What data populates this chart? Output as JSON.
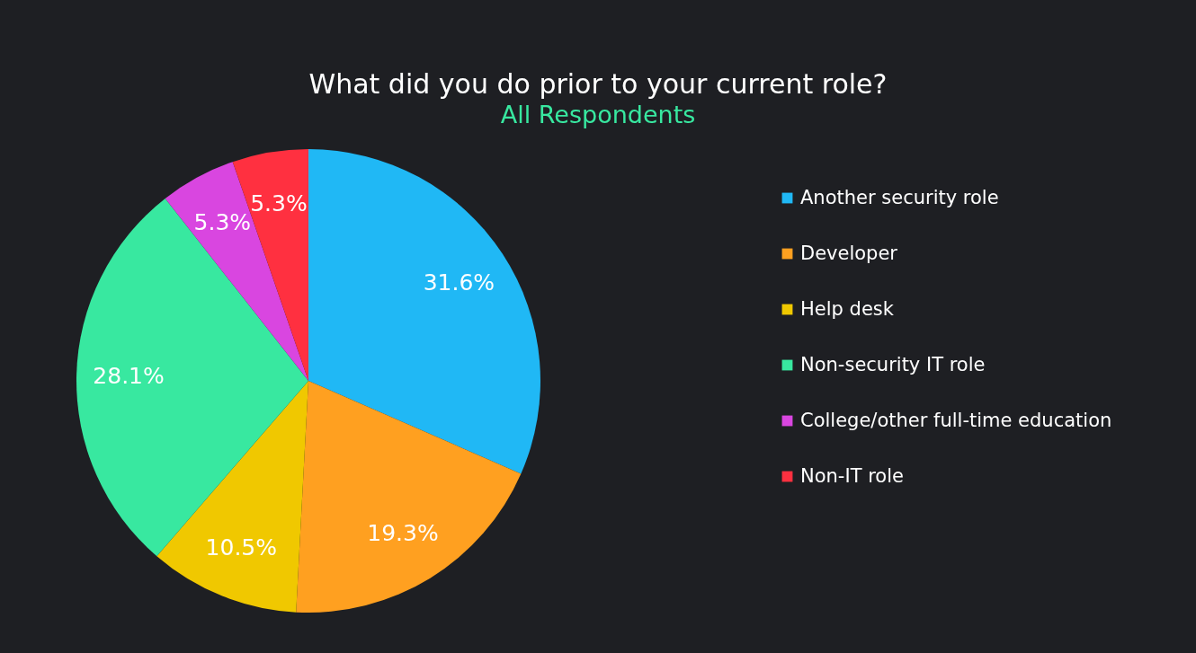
{
  "chart_data": {
    "type": "pie",
    "title": "What did you do prior to your current role?",
    "subtitle": "All Respondents",
    "categories": [
      "Another security role",
      "Developer",
      "Help desk",
      "Non-security IT role",
      "College/other full-time education",
      "Non-IT role"
    ],
    "values": [
      31.6,
      19.3,
      10.5,
      28.1,
      5.3,
      5.3
    ],
    "value_labels": [
      "31.6%",
      "19.3%",
      "10.5%",
      "28.1%",
      "5.3%",
      "5.3%"
    ],
    "colors": [
      "#20b8f5",
      "#ffa020",
      "#f0c800",
      "#38e8a0",
      "#d946e0",
      "#ff3040"
    ],
    "legend": "right"
  }
}
